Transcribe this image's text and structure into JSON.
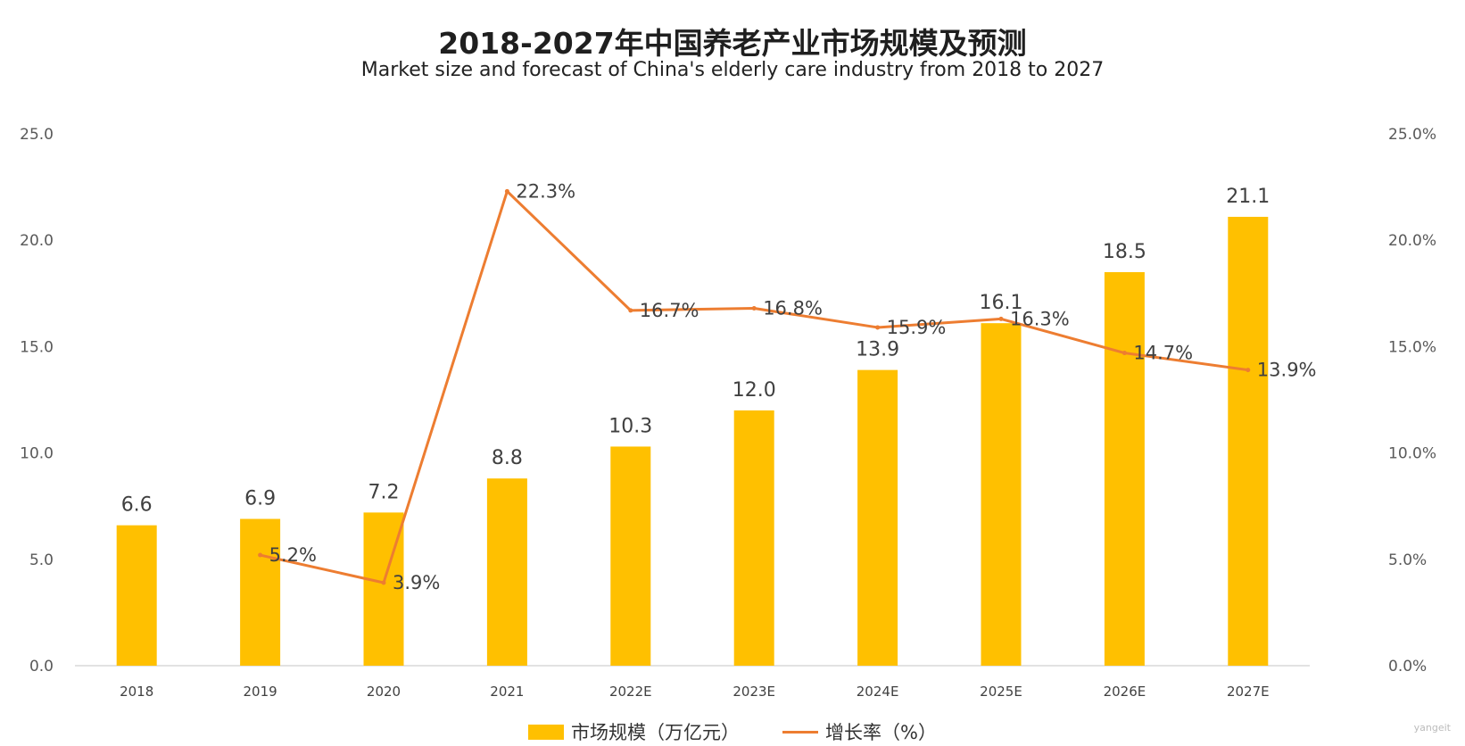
{
  "chart_data": {
    "type": "bar",
    "title": "2018-2027年中国养老产业市场规模及预测",
    "subtitle": "Market size and forecast of China's elderly care industry from 2018 to 2027",
    "categories": [
      "2018",
      "2019",
      "2020",
      "2021",
      "2022E",
      "2023E",
      "2024E",
      "2025E",
      "2026E",
      "2027E"
    ],
    "series": [
      {
        "name": "市场规模（万亿元）",
        "type": "bar",
        "axis": "left",
        "color": "#FFC000",
        "values": [
          6.6,
          6.9,
          7.2,
          8.8,
          10.3,
          12.0,
          13.9,
          16.1,
          18.5,
          21.1
        ],
        "labels": [
          "6.6",
          "6.9",
          "7.2",
          "8.8",
          "10.3",
          "12.0",
          "13.9",
          "16.1",
          "18.5",
          "21.1"
        ]
      },
      {
        "name": "增长率（%）",
        "type": "line",
        "axis": "right",
        "color": "#ED7D31",
        "values": [
          null,
          5.2,
          3.9,
          22.3,
          16.7,
          16.8,
          15.9,
          16.3,
          14.7,
          13.9
        ],
        "labels": [
          null,
          "5.2%",
          "3.9%",
          "22.3%",
          "16.7%",
          "16.8%",
          "15.9%",
          "16.3%",
          "14.7%",
          "13.9%"
        ]
      }
    ],
    "y_left": {
      "min": 0,
      "max": 25,
      "ticks": [
        "0.0",
        "5.0",
        "10.0",
        "15.0",
        "20.0",
        "25.0"
      ]
    },
    "y_right": {
      "min": 0,
      "max": 25,
      "ticks": [
        "0.0%",
        "5.0%",
        "10.0%",
        "15.0%",
        "20.0%",
        "25.0%"
      ]
    },
    "grid": false,
    "legend_position": "bottom-center"
  },
  "watermark": "yangeit"
}
